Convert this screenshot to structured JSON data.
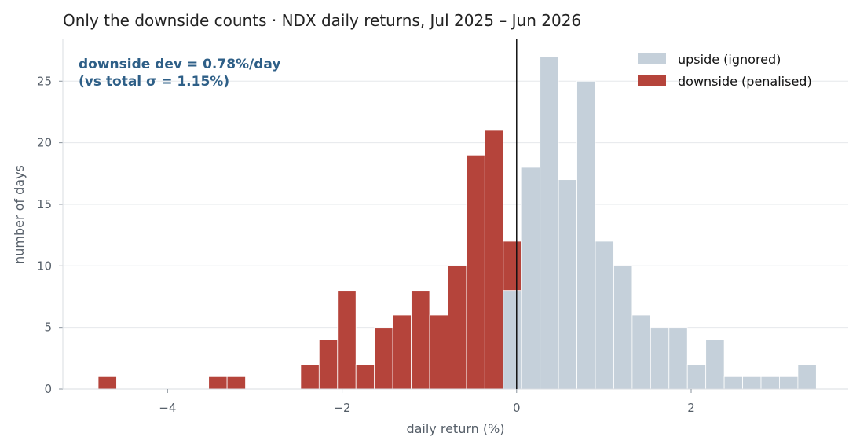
{
  "colors": {
    "upside": "#c5d0da",
    "downside": "#b5443b",
    "zero_line": "#111111",
    "annotation": "#2e5f87"
  },
  "chart_data": {
    "type": "bar",
    "title": "Only the downside counts  ·  NDX daily returns, Jul 2025 – Jun 2026",
    "xlabel": "daily return (%)",
    "ylabel": "number of days",
    "xlim": [
      -5.2,
      3.8
    ],
    "ylim": [
      0,
      28.4
    ],
    "x_ticks": [
      -4,
      -2,
      0,
      2
    ],
    "x_tick_labels": [
      "−4",
      "−2",
      "0",
      "2"
    ],
    "y_ticks": [
      0,
      5,
      10,
      15,
      20,
      25
    ],
    "y_tick_labels": [
      "0",
      "5",
      "10",
      "15",
      "20",
      "25"
    ],
    "grid": "horizontal",
    "bin_width": 0.211,
    "bin_start": -4.795,
    "annotation": [
      "downside dev = 0.78%/day",
      "(vs total σ = 1.15%)"
    ],
    "legend": {
      "placement": "top-right",
      "entries": [
        {
          "label": "upside (ignored)",
          "series": "upside"
        },
        {
          "label": "downside (penalised)",
          "series": "downside"
        }
      ]
    },
    "zero_line_x": 0,
    "series": [
      {
        "name": "downside (penalised)",
        "key": "downside",
        "counts": [
          1,
          0,
          0,
          0,
          0,
          0,
          1,
          1,
          0,
          0,
          0,
          2,
          4,
          8,
          2,
          5,
          6,
          8,
          6,
          10,
          19,
          21,
          12
        ]
      },
      {
        "name": "upside (ignored)",
        "key": "upside",
        "counts": [
          0,
          0,
          0,
          0,
          0,
          0,
          0,
          0,
          0,
          0,
          0,
          0,
          0,
          0,
          0,
          0,
          0,
          0,
          0,
          0,
          0,
          0,
          8,
          18,
          27,
          17,
          25,
          12,
          10,
          6,
          5,
          5,
          2,
          4,
          1,
          1,
          1,
          1,
          2
        ]
      }
    ]
  }
}
